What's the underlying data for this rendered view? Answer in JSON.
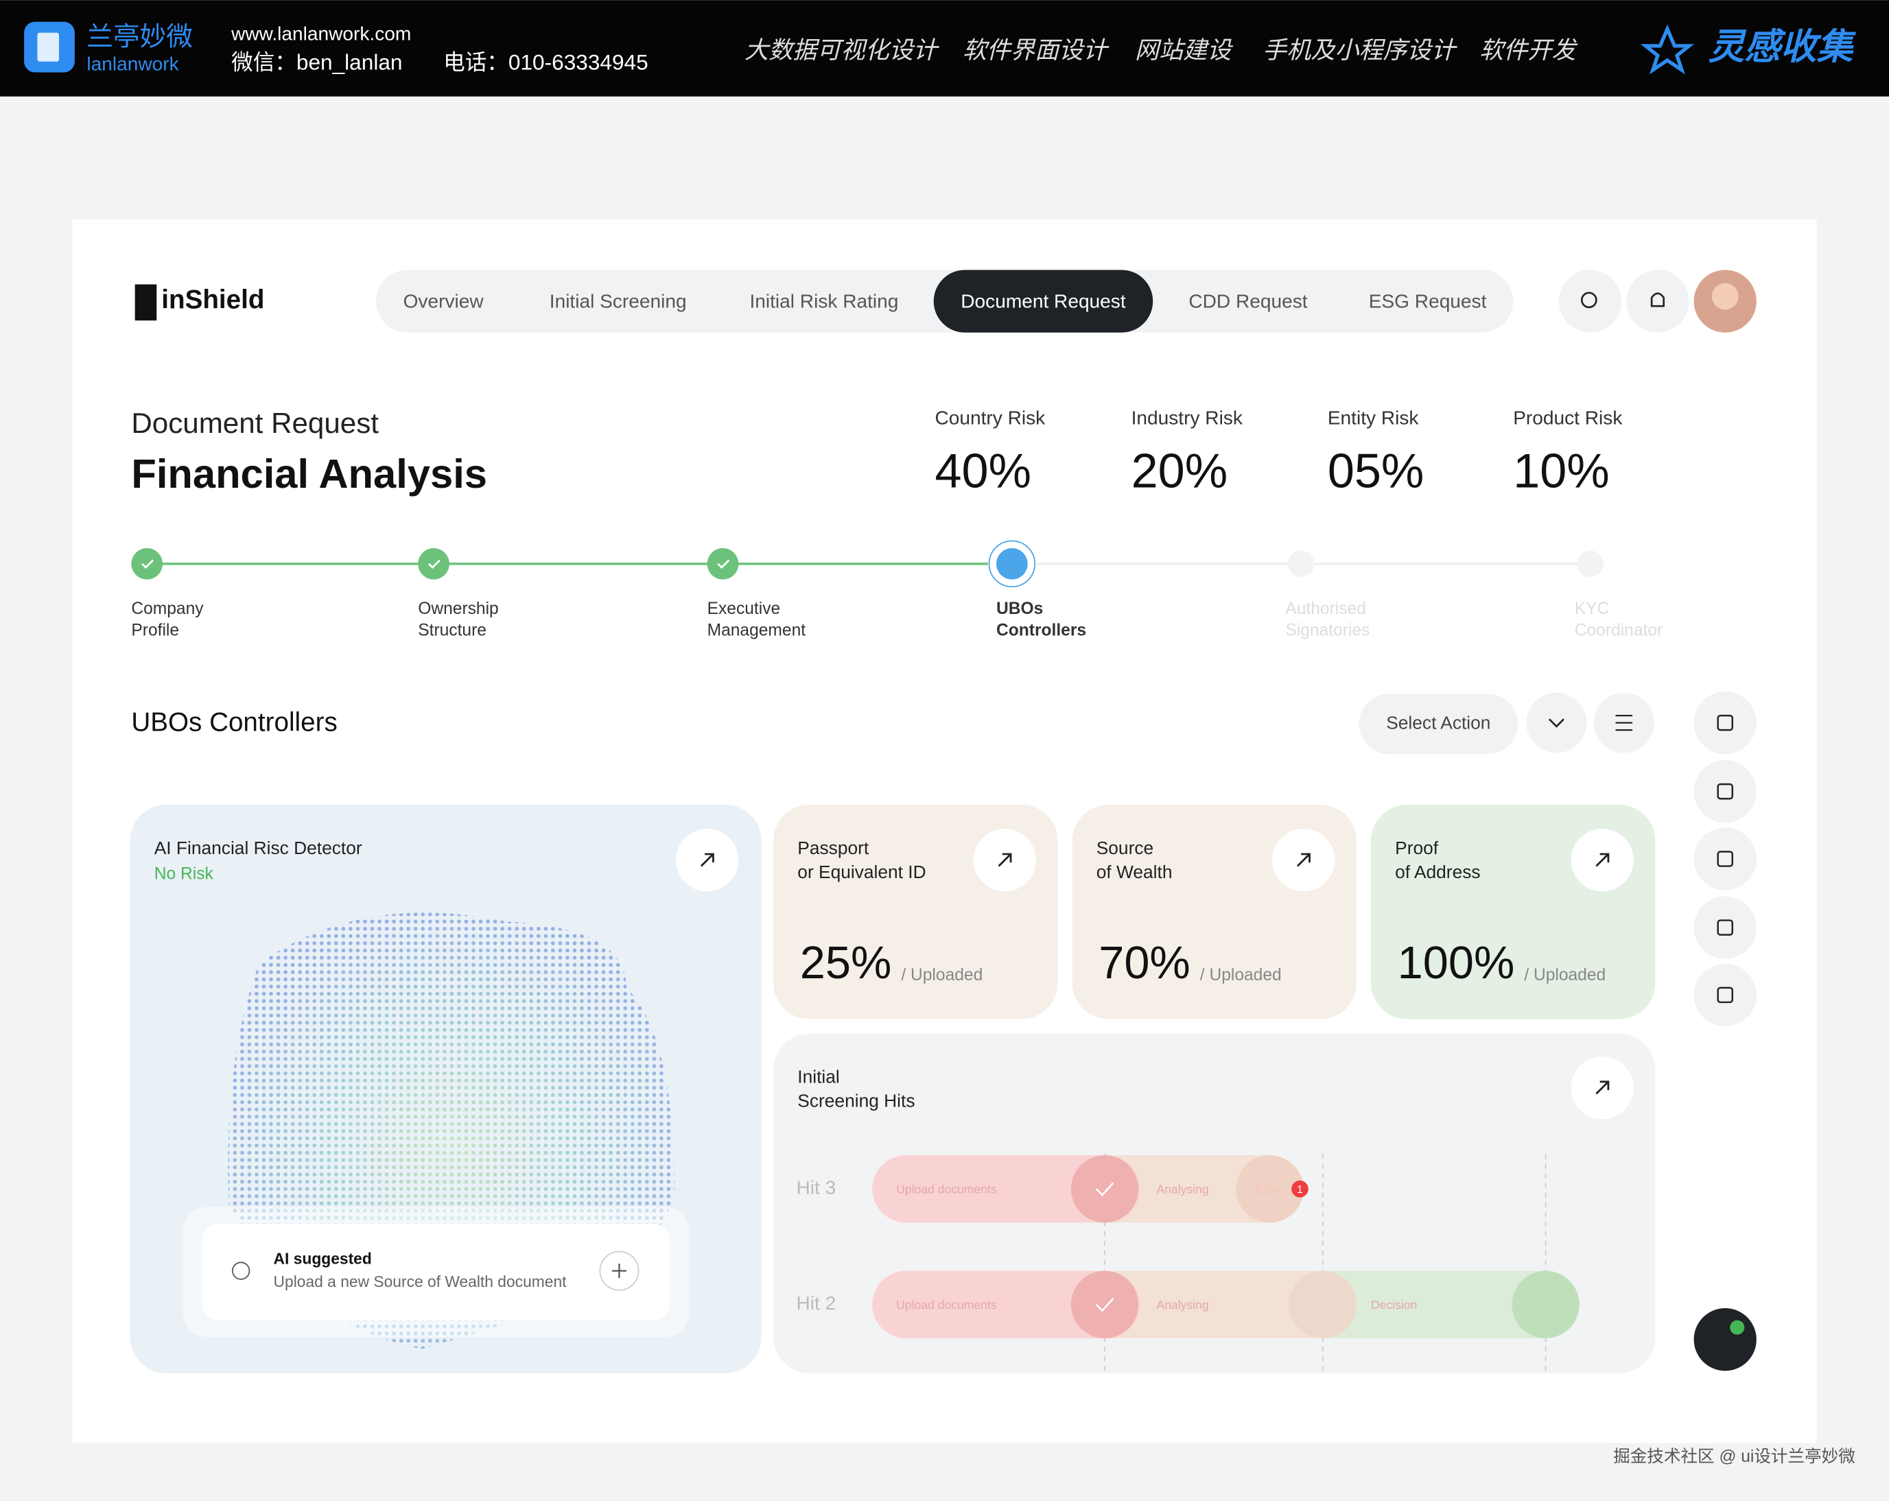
{
  "banner": {
    "logo_cn": "兰亭妙微",
    "logo_en": "lanlanwork",
    "url": "www.lanlanwork.com",
    "wechat": "微信：ben_lanlan",
    "phone": "电话：010-63334945",
    "nav": [
      "大数据可视化设计",
      "软件界面设计",
      "网站建设",
      "手机及小程序设计",
      "软件开发"
    ],
    "brand": "灵感收集"
  },
  "app": {
    "logo": "inShield",
    "tabs": [
      "Overview",
      "Initial Screening",
      "Initial Risk Rating",
      "Document Request",
      "CDD Request",
      "ESG Request"
    ],
    "active_tab": 3,
    "header": {
      "subtitle": "Document Request",
      "title": "Financial Analysis"
    },
    "risks": [
      {
        "label": "Country Risk",
        "value": "40%"
      },
      {
        "label": "Industry Risk",
        "value": "20%"
      },
      {
        "label": "Entity Risk",
        "value": "05%"
      },
      {
        "label": "Product Risk",
        "value": "10%"
      }
    ],
    "steps": [
      {
        "label": [
          "Company",
          "Profile"
        ],
        "status": "done"
      },
      {
        "label": [
          "Ownership",
          "Structure"
        ],
        "status": "done"
      },
      {
        "label": [
          "Executive",
          "Management"
        ],
        "status": "done"
      },
      {
        "label": [
          "UBOs",
          "Controllers"
        ],
        "status": "current"
      },
      {
        "label": [
          "Authorised",
          "Signatories"
        ],
        "status": "todo"
      },
      {
        "label": [
          "KYC",
          "Coordinator"
        ],
        "status": "todo"
      }
    ],
    "section_title": "UBOs Controllers",
    "select_action": "Select Action",
    "ai_card": {
      "title": "AI Financial Risc Detector",
      "status": "No Risk",
      "suggestion_title": "AI suggested",
      "suggestion_text": "Upload a new Source of Wealth document"
    },
    "doc_cards": [
      {
        "title": [
          "Passport",
          "or Equivalent ID"
        ],
        "percent": "25%",
        "suffix": "/ Uploaded",
        "color": "#f5efe8"
      },
      {
        "title": [
          "Source",
          "of Wealth"
        ],
        "percent": "70%",
        "suffix": "/ Uploaded",
        "color": "#f5efe8"
      },
      {
        "title": [
          "Proof",
          "of Address"
        ],
        "percent": "100%",
        "suffix": "/ Uploaded",
        "color": "#e4f0e3"
      }
    ],
    "hits": {
      "title": [
        "Initial",
        "Screening Hits"
      ],
      "rows": [
        {
          "label": "Hit 3",
          "stages": [
            "Upload documents",
            "Analysing",
            "62%"
          ],
          "badge": "1"
        },
        {
          "label": "Hit 2",
          "stages": [
            "Upload documents",
            "Analysing",
            "Decision"
          ]
        }
      ]
    }
  },
  "watermark": "掘金技术社区 @ ui设计兰亭妙微"
}
